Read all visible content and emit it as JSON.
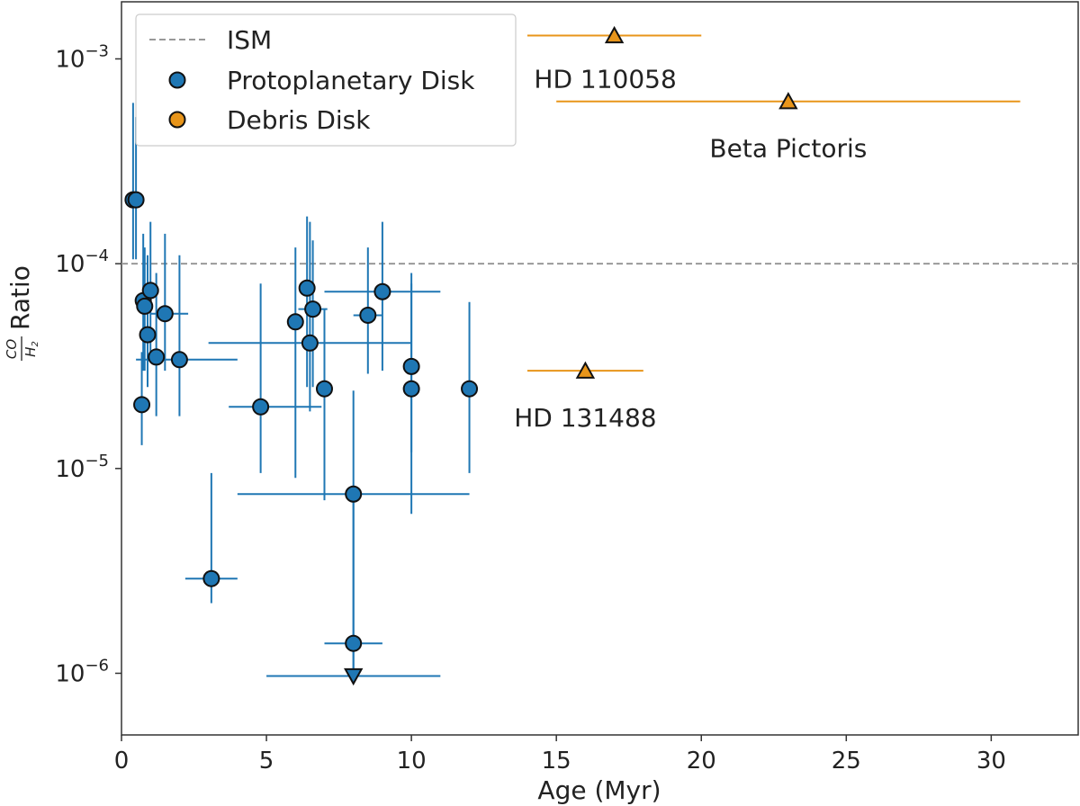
{
  "chart_data": {
    "type": "scatter",
    "xlabel": "Age (Myr)",
    "ylabel_fraction_num": "CO",
    "ylabel_fraction_den": "H",
    "ylabel_fraction_den_sub": "2",
    "ylabel_text": "Ratio",
    "xlim": [
      0,
      33
    ],
    "ylim": [
      5e-07,
      0.0019
    ],
    "y_scale": "log",
    "x_ticks": [
      0,
      5,
      10,
      15,
      20,
      25,
      30
    ],
    "x_tick_labels": [
      "0",
      "5",
      "10",
      "15",
      "20",
      "25",
      "30"
    ],
    "y_ticks": [
      1e-06,
      1e-05,
      0.0001,
      0.001
    ],
    "y_tick_bases": [
      "10",
      "10",
      "10",
      "10"
    ],
    "y_tick_exps": [
      "−6",
      "−5",
      "−4",
      "−3"
    ],
    "grid": false,
    "legend_position": "top-left",
    "legend": [
      {
        "label": "ISM",
        "marker": "dashed-line",
        "color": "#999999"
      },
      {
        "label": "Protoplanetary Disk",
        "marker": "circle",
        "color": "#1f77b4"
      },
      {
        "label": "Debris Disk",
        "marker": "circle",
        "color": "#e8951a"
      }
    ],
    "reference_lines": [
      {
        "name": "ISM",
        "y": 0.0001,
        "style": "dashed",
        "color": "#999999"
      }
    ],
    "series": [
      {
        "name": "Protoplanetary Disk",
        "color": "#1f77b4",
        "marker": "circle",
        "points": [
          {
            "x": 0.4,
            "y": 0.000205,
            "xerr": [
              0.4,
              0.4
            ],
            "yerr": [
              0.000105,
              0.00061
            ]
          },
          {
            "x": 0.5,
            "y": 0.000205,
            "xerr": [
              0.5,
              0.5
            ],
            "yerr": [
              0.000105,
              0.00052
            ]
          },
          {
            "x": 0.75,
            "y": 6.6e-05,
            "xerr": [
              0.75,
              0.75
            ],
            "yerr": [
              3e-05,
              0.00014
            ]
          },
          {
            "x": 0.8,
            "y": 6.2e-05,
            "xerr": [
              0.8,
              0.8
            ],
            "yerr": [
              3e-05,
              0.00012
            ]
          },
          {
            "x": 0.7,
            "y": 2.05e-05,
            "xerr": [
              0.7,
              0.7
            ],
            "yerr": [
              1.3e-05,
              3.7e-05
            ]
          },
          {
            "x": 0.9,
            "y": 4.5e-05,
            "xerr": [
              0.8,
              1.0
            ],
            "yerr": [
              2.5e-05,
              0.00011
            ]
          },
          {
            "x": 1.0,
            "y": 7.4e-05,
            "xerr": [
              0.9,
              1.1
            ],
            "yerr": [
              3.5e-05,
              0.00016
            ]
          },
          {
            "x": 1.2,
            "y": 3.5e-05,
            "xerr": [
              0.9,
              1.5
            ],
            "yerr": [
              1.8e-05,
              9e-05
            ]
          },
          {
            "x": 1.5,
            "y": 5.7e-05,
            "xerr": [
              1.0,
              2.3
            ],
            "yerr": [
              3e-05,
              0.00014
            ]
          },
          {
            "x": 2.0,
            "y": 3.4e-05,
            "xerr": [
              0.5,
              4.0
            ],
            "yerr": [
              1.8e-05,
              0.00011
            ]
          },
          {
            "x": 3.1,
            "y": 2.9e-06,
            "xerr": [
              2.2,
              4.0
            ],
            "yerr": [
              2.2e-06,
              9.5e-06
            ]
          },
          {
            "x": 4.8,
            "y": 2e-05,
            "xerr": [
              3.7,
              6.9
            ],
            "yerr": [
              9.5e-06,
              8e-05
            ]
          },
          {
            "x": 6.0,
            "y": 5.2e-05,
            "xerr": [
              6.0,
              6.0
            ],
            "yerr": [
              9e-06,
              0.00012
            ]
          },
          {
            "x": 6.4,
            "y": 7.6e-05,
            "xerr": [
              6.4,
              6.4
            ],
            "yerr": [
              2.5e-05,
              0.00017
            ]
          },
          {
            "x": 6.5,
            "y": 4.1e-05,
            "xerr": [
              3.0,
              10.0
            ],
            "yerr": [
              1.9e-05,
              0.00016
            ]
          },
          {
            "x": 6.6,
            "y": 6e-05,
            "xerr": [
              6.1,
              7.1
            ],
            "yerr": [
              2.5e-05,
              0.00013
            ]
          },
          {
            "x": 7.0,
            "y": 2.45e-05,
            "xerr": [
              7.0,
              7.0
            ],
            "yerr": [
              7e-06,
              6e-05
            ]
          },
          {
            "x": 8.0,
            "y": 7.5e-06,
            "xerr": [
              4.0,
              12.0
            ],
            "yerr": [
              1e-06,
              2.4e-05
            ]
          },
          {
            "x": 8.0,
            "y": 1.4e-06,
            "xerr": [
              7.0,
              9.0
            ],
            "yerr": [
              1e-06,
              7e-06
            ]
          },
          {
            "x": 8.5,
            "y": 5.6e-05,
            "xerr": [
              8.0,
              9.0
            ],
            "yerr": [
              2.9e-05,
              0.00012
            ]
          },
          {
            "x": 9.0,
            "y": 7.3e-05,
            "xerr": [
              7.0,
              11.0
            ],
            "yerr": [
              3e-05,
              0.00016
            ]
          },
          {
            "x": 10.0,
            "y": 3.15e-05,
            "xerr": [
              10.0,
              10.0
            ],
            "yerr": [
              1.2e-05,
              9e-05
            ]
          },
          {
            "x": 10.0,
            "y": 2.45e-05,
            "xerr": [
              10.0,
              10.0
            ],
            "yerr": [
              6e-06,
              8e-05
            ]
          },
          {
            "x": 12.0,
            "y": 2.45e-05,
            "xerr": [
              12.0,
              12.0
            ],
            "yerr": [
              9.5e-06,
              6.5e-05
            ]
          }
        ],
        "upper_limits": [
          {
            "x": 8.0,
            "y": 9.7e-07,
            "xerr": [
              5.0,
              11.0
            ]
          }
        ]
      },
      {
        "name": "Debris Disk",
        "color": "#e8951a",
        "marker": "triangle-up",
        "points": [
          {
            "x": 17,
            "y": 0.0013,
            "xerr": [
              14,
              20
            ],
            "label": "HD 110058"
          },
          {
            "x": 23,
            "y": 0.00062,
            "xerr": [
              15,
              31
            ],
            "label": "Beta Pictoris"
          },
          {
            "x": 16,
            "y": 3e-05,
            "xerr": [
              14,
              18
            ],
            "label": "HD 131488"
          }
        ]
      }
    ]
  }
}
